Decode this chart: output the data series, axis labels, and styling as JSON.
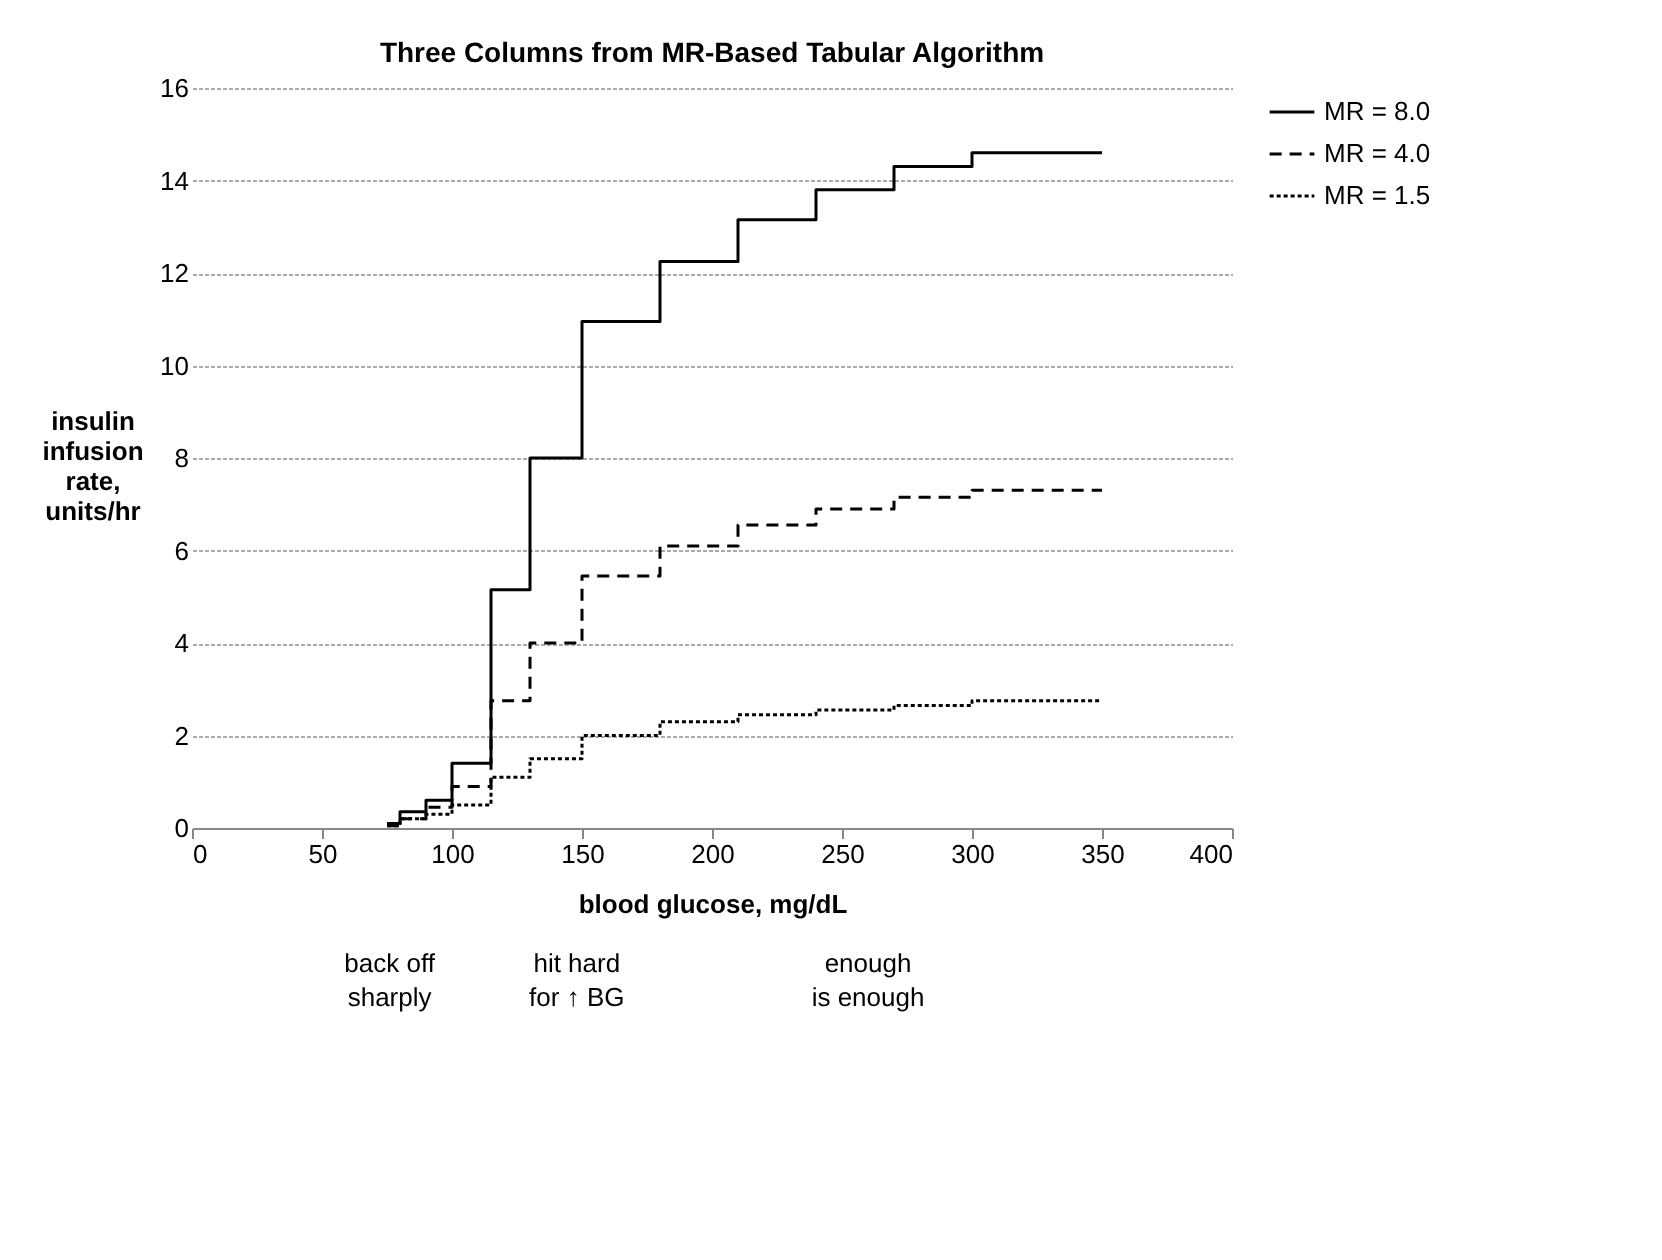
{
  "chart_data": {
    "type": "step",
    "title": "Three Columns from  MR-Based Tabular Algorithm",
    "xlabel": "blood glucose, mg/dL",
    "ylabel": "insulin infusion rate, units/hr",
    "x": [
      75,
      80,
      90,
      100,
      115,
      130,
      150,
      180,
      210,
      240,
      270,
      300,
      350
    ],
    "series": [
      {
        "name": "MR = 8.0",
        "color": "#000000",
        "line_style": "solid",
        "values": [
          0.1,
          0.35,
          0.6,
          1.4,
          5.15,
          8.0,
          10.95,
          12.25,
          13.15,
          13.8,
          14.3,
          14.6,
          14.6
        ]
      },
      {
        "name": "MR = 4.0",
        "color": "#000000",
        "line_style": "dashed",
        "values": [
          0.05,
          0.2,
          0.45,
          0.9,
          2.75,
          4.0,
          5.45,
          6.1,
          6.55,
          6.9,
          7.15,
          7.3,
          7.3
        ]
      },
      {
        "name": "MR = 1.5",
        "color": "#000000",
        "line_style": "dotted",
        "values": [
          0.05,
          0.2,
          0.3,
          0.5,
          1.1,
          1.5,
          2.0,
          2.3,
          2.45,
          2.55,
          2.65,
          2.75,
          2.75
        ]
      }
    ],
    "xlim": [
      0,
      400
    ],
    "xticks": [
      0,
      50,
      100,
      150,
      200,
      250,
      300,
      350,
      400
    ],
    "ylim": [
      0,
      16
    ],
    "yticks": [
      0,
      2,
      4,
      6,
      8,
      10,
      12,
      14,
      16
    ],
    "grid": "y",
    "legend": "right",
    "marker": "none",
    "annotations": [
      "back off\nsharply",
      "hit hard\nfor ↑ BG",
      "enough\n  is enough"
    ]
  }
}
